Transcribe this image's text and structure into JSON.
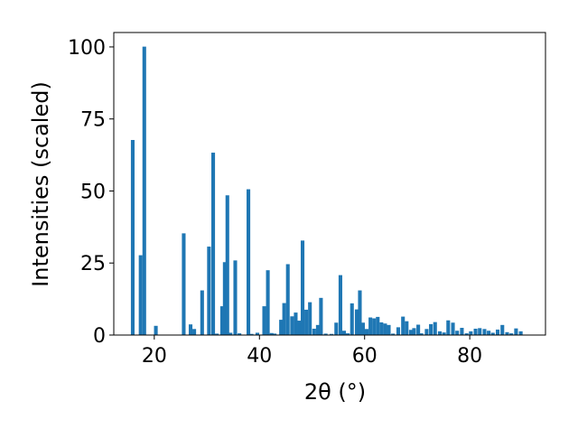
{
  "chart_data": {
    "type": "bar",
    "title": "",
    "xlabel": "2θ (°)",
    "ylabel": "Intensities (scaled)",
    "xlim": [
      12.3,
      94.4
    ],
    "ylim": [
      0,
      105
    ],
    "xticks": [
      20,
      40,
      60,
      80
    ],
    "yticks": [
      0,
      25,
      50,
      75,
      100
    ],
    "bar_width": 0.7,
    "bar_color": "#1f77b4",
    "grid": false,
    "x": [
      15.9,
      17.4,
      18.1,
      20.3,
      25.6,
      26.9,
      27.6,
      29.1,
      30.4,
      31.2,
      31.9,
      32.9,
      33.4,
      33.9,
      34.5,
      35.4,
      36.2,
      37.9,
      38.5,
      39.6,
      40.9,
      41.6,
      42.3,
      42.9,
      44.1,
      44.7,
      45.4,
      46.2,
      46.9,
      47.6,
      48.2,
      48.9,
      49.6,
      50.4,
      51.1,
      51.7,
      52.6,
      53.7,
      54.6,
      55.4,
      56.1,
      56.8,
      57.6,
      58.5,
      59.1,
      59.7,
      60.4,
      61.1,
      61.8,
      62.5,
      63.2,
      63.9,
      64.6,
      65.4,
      66.4,
      67.3,
      68.0,
      68.8,
      69.4,
      70.2,
      70.8,
      71.8,
      72.6,
      73.4,
      74.3,
      75.1,
      75.9,
      76.8,
      77.6,
      78.5,
      79.4,
      80.2,
      81.1,
      81.9,
      82.8,
      83.6,
      84.4,
      85.3,
      86.2,
      87.1,
      87.9,
      88.8,
      89.7
    ],
    "values": [
      67.7,
      27.7,
      100.1,
      3.2,
      35.3,
      3.7,
      2.1,
      15.5,
      30.7,
      63.3,
      0.5,
      10.0,
      25.3,
      48.5,
      0.8,
      25.9,
      0.6,
      50.6,
      0.4,
      0.8,
      10.0,
      22.5,
      0.7,
      0.5,
      5.3,
      11.1,
      24.6,
      6.5,
      7.8,
      5.0,
      32.8,
      8.8,
      11.4,
      2.2,
      3.5,
      12.9,
      0.5,
      0.4,
      4.3,
      20.8,
      1.5,
      0.6,
      11.0,
      8.9,
      15.5,
      4.3,
      2.1,
      6.1,
      5.8,
      6.3,
      4.4,
      4.0,
      3.5,
      0.5,
      2.7,
      6.4,
      4.8,
      1.8,
      2.4,
      3.6,
      0.6,
      2.1,
      3.8,
      4.5,
      1.3,
      0.9,
      5.1,
      4.3,
      1.5,
      2.5,
      0.6,
      1.3,
      2.2,
      2.4,
      2.1,
      1.5,
      0.8,
      1.9,
      3.5,
      1.0,
      0.6,
      2.3,
      1.3
    ]
  }
}
